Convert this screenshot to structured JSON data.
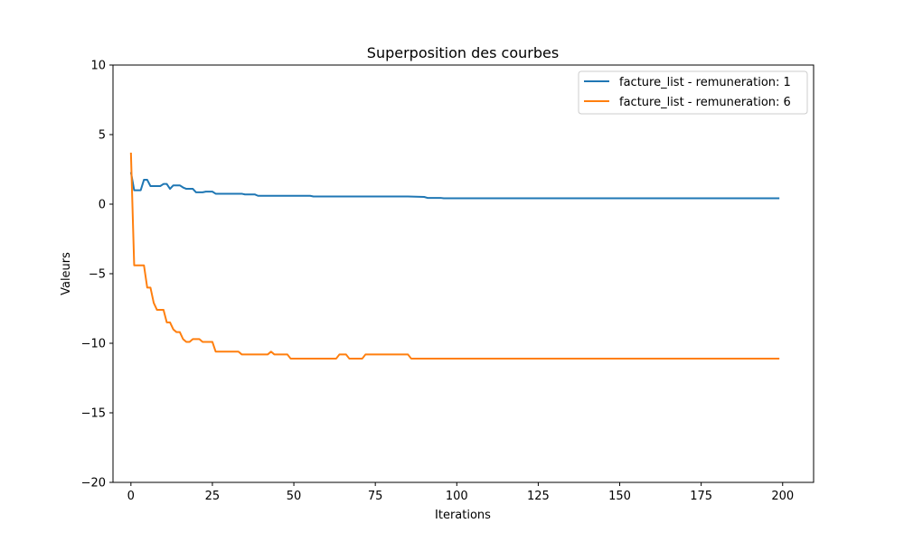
{
  "chart_data": {
    "type": "line",
    "title": "Superposition des courbes",
    "xlabel": "Iterations",
    "ylabel": "Valeurs",
    "xlim": [
      -5.5,
      209.5
    ],
    "ylim": [
      -20,
      10
    ],
    "xticks": [
      0,
      25,
      50,
      75,
      100,
      125,
      150,
      175,
      200
    ],
    "yticks": [
      -20,
      -15,
      -10,
      -5,
      0,
      5,
      10
    ],
    "legend_position": "top-right",
    "grid": false,
    "series": [
      {
        "name": "facture_list - remuneration: 1",
        "color": "#1f77b4",
        "points": [
          [
            0,
            2.3
          ],
          [
            1,
            1.0
          ],
          [
            2,
            1.0
          ],
          [
            3,
            1.0
          ],
          [
            4,
            1.75
          ],
          [
            5,
            1.75
          ],
          [
            6,
            1.3
          ],
          [
            7,
            1.3
          ],
          [
            8,
            1.3
          ],
          [
            9,
            1.3
          ],
          [
            10,
            1.45
          ],
          [
            11,
            1.45
          ],
          [
            12,
            1.1
          ],
          [
            13,
            1.35
          ],
          [
            14,
            1.35
          ],
          [
            15,
            1.35
          ],
          [
            16,
            1.2
          ],
          [
            17,
            1.1
          ],
          [
            18,
            1.1
          ],
          [
            19,
            1.1
          ],
          [
            20,
            0.85
          ],
          [
            21,
            0.85
          ],
          [
            22,
            0.85
          ],
          [
            23,
            0.9
          ],
          [
            24,
            0.9
          ],
          [
            25,
            0.9
          ],
          [
            26,
            0.75
          ],
          [
            30,
            0.75
          ],
          [
            34,
            0.75
          ],
          [
            35,
            0.7
          ],
          [
            38,
            0.7
          ],
          [
            39,
            0.6
          ],
          [
            45,
            0.6
          ],
          [
            55,
            0.6
          ],
          [
            56,
            0.55
          ],
          [
            70,
            0.55
          ],
          [
            85,
            0.55
          ],
          [
            90,
            0.52
          ],
          [
            91,
            0.45
          ],
          [
            95,
            0.45
          ],
          [
            96,
            0.42
          ],
          [
            120,
            0.42
          ],
          [
            150,
            0.42
          ],
          [
            180,
            0.42
          ],
          [
            199,
            0.42
          ]
        ]
      },
      {
        "name": "facture_list - remuneration: 6",
        "color": "#ff7f0e",
        "points": [
          [
            0,
            3.7
          ],
          [
            1,
            -4.4
          ],
          [
            2,
            -4.4
          ],
          [
            3,
            -4.4
          ],
          [
            4,
            -4.4
          ],
          [
            5,
            -6.0
          ],
          [
            6,
            -6.0
          ],
          [
            7,
            -7.1
          ],
          [
            8,
            -7.6
          ],
          [
            9,
            -7.6
          ],
          [
            10,
            -7.6
          ],
          [
            11,
            -8.5
          ],
          [
            12,
            -8.5
          ],
          [
            13,
            -9.0
          ],
          [
            14,
            -9.2
          ],
          [
            15,
            -9.2
          ],
          [
            16,
            -9.7
          ],
          [
            17,
            -9.9
          ],
          [
            18,
            -9.9
          ],
          [
            19,
            -9.7
          ],
          [
            20,
            -9.7
          ],
          [
            21,
            -9.7
          ],
          [
            22,
            -9.9
          ],
          [
            23,
            -9.9
          ],
          [
            24,
            -9.9
          ],
          [
            25,
            -9.9
          ],
          [
            26,
            -10.6
          ],
          [
            27,
            -10.6
          ],
          [
            30,
            -10.6
          ],
          [
            33,
            -10.6
          ],
          [
            34,
            -10.8
          ],
          [
            35,
            -10.8
          ],
          [
            40,
            -10.8
          ],
          [
            42,
            -10.8
          ],
          [
            43,
            -10.6
          ],
          [
            44,
            -10.8
          ],
          [
            48,
            -10.8
          ],
          [
            49,
            -11.1
          ],
          [
            55,
            -11.1
          ],
          [
            63,
            -11.1
          ],
          [
            64,
            -10.8
          ],
          [
            65,
            -10.8
          ],
          [
            66,
            -10.8
          ],
          [
            67,
            -11.1
          ],
          [
            70,
            -11.1
          ],
          [
            71,
            -11.1
          ],
          [
            72,
            -10.8
          ],
          [
            75,
            -10.8
          ],
          [
            80,
            -10.8
          ],
          [
            85,
            -10.8
          ],
          [
            86,
            -11.1
          ],
          [
            90,
            -11.1
          ],
          [
            120,
            -11.1
          ],
          [
            150,
            -11.1
          ],
          [
            180,
            -11.1
          ],
          [
            199,
            -11.1
          ]
        ]
      }
    ]
  }
}
